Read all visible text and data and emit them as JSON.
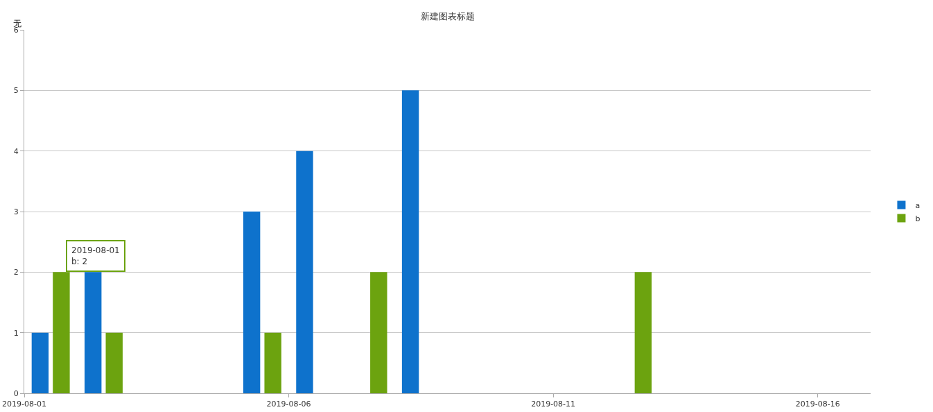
{
  "chart_data": {
    "type": "bar",
    "title": "新建图表标题",
    "ylabel": "无",
    "x": [
      "2019-08-01T12:00",
      "2019-08-02T12:00",
      "2019-08-05T12:00",
      "2019-08-06T12:00",
      "2019-08-07T12:00",
      "2019-08-08T12:00",
      "2019-08-12T12:00"
    ],
    "series": [
      {
        "name": "a",
        "color": "#0e72cc",
        "values": [
          1,
          2,
          3,
          4,
          null,
          5,
          null
        ]
      },
      {
        "name": "b",
        "color": "#6ca30f",
        "values": [
          2,
          1,
          1,
          null,
          2,
          null,
          2
        ]
      }
    ],
    "xlim": [
      "2019-08-01",
      "2019-08-17"
    ],
    "xticks": [
      "2019-08-01",
      "2019-08-06",
      "2019-08-11",
      "2019-08-16"
    ],
    "ylim": [
      0,
      6
    ],
    "yticks": [
      0,
      1,
      2,
      3,
      4,
      5,
      6
    ],
    "grid": "y",
    "legend": "right",
    "annotations": [
      {
        "text": "2019-08-01\nb: 2",
        "x": "2019-08-01T12:00",
        "y": 2
      }
    ]
  }
}
